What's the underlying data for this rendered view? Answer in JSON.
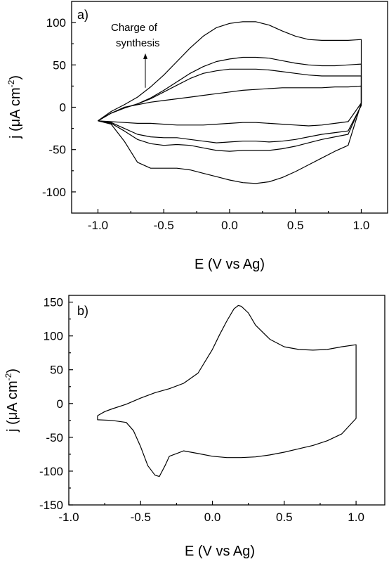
{
  "chart_data": [
    {
      "type": "line",
      "panel_label": "a)",
      "xlabel": "E (V vs Ag)",
      "ylabel_main": "j (",
      "ylabel_unit": "μA cm",
      "ylabel_exp": "-2",
      "ylabel_close": ")",
      "xlim": [
        -1.2,
        1.2
      ],
      "ylim": [
        -125,
        125
      ],
      "xticks": [
        -1.0,
        -0.5,
        0.0,
        0.5,
        1.0
      ],
      "xticklabels": [
        "-1.0",
        "-0.5",
        "0.0",
        "0.5",
        "1.0"
      ],
      "yticks": [
        -100,
        -50,
        0,
        50,
        100
      ],
      "yticklabels": [
        "-100",
        "-50",
        "0",
        "50",
        "100"
      ],
      "annotation": {
        "lines": [
          "Charge of",
          "synthesis"
        ],
        "arrow_x": -0.64,
        "arrow_y_from": 23,
        "arrow_y_to": 62
      },
      "series": [
        {
          "x": [
            -1.0,
            -0.9,
            -0.8,
            -0.7,
            -0.6,
            -0.5,
            -0.4,
            -0.3,
            -0.2,
            -0.1,
            0.0,
            0.1,
            0.2,
            0.3,
            0.4,
            0.5,
            0.6,
            0.7,
            0.8,
            0.9,
            1.0,
            1.0,
            0.9,
            0.8,
            0.7,
            0.6,
            0.5,
            0.4,
            0.3,
            0.2,
            0.1,
            0.0,
            -0.1,
            -0.2,
            -0.3,
            -0.4,
            -0.5,
            -0.6,
            -0.7,
            -0.8,
            -0.9,
            -1.0
          ],
          "y": [
            -16,
            -7,
            0,
            3,
            6,
            8,
            10,
            12,
            14,
            16,
            18,
            20,
            21,
            22,
            23,
            23,
            23,
            23,
            24,
            24,
            25,
            5,
            -17,
            -19,
            -21,
            -22,
            -21,
            -20,
            -19,
            -18,
            -18,
            -19,
            -20,
            -21,
            -21,
            -21,
            -20,
            -19,
            -19,
            -18,
            -17,
            -16
          ]
        },
        {
          "x": [
            -1.0,
            -0.9,
            -0.8,
            -0.7,
            -0.6,
            -0.5,
            -0.4,
            -0.3,
            -0.2,
            -0.1,
            0.0,
            0.1,
            0.2,
            0.3,
            0.4,
            0.5,
            0.6,
            0.7,
            0.8,
            0.9,
            1.0,
            1.0,
            0.9,
            0.8,
            0.7,
            0.6,
            0.5,
            0.4,
            0.3,
            0.2,
            0.1,
            0.0,
            -0.1,
            -0.2,
            -0.3,
            -0.4,
            -0.5,
            -0.6,
            -0.7,
            -0.8,
            -0.9,
            -1.0
          ],
          "y": [
            -16,
            -7,
            -1,
            4,
            10,
            18,
            26,
            34,
            40,
            43,
            45,
            45,
            45,
            44,
            42,
            40,
            38,
            37,
            37,
            37,
            37,
            2,
            -28,
            -30,
            -32,
            -35,
            -38,
            -40,
            -41,
            -40,
            -40,
            -41,
            -42,
            -40,
            -38,
            -36,
            -36,
            -35,
            -32,
            -25,
            -18,
            -16
          ]
        },
        {
          "x": [
            -1.0,
            -0.9,
            -0.8,
            -0.7,
            -0.6,
            -0.5,
            -0.4,
            -0.3,
            -0.2,
            -0.1,
            0.0,
            0.1,
            0.2,
            0.3,
            0.4,
            0.5,
            0.6,
            0.7,
            0.8,
            0.9,
            1.0,
            1.0,
            0.9,
            0.8,
            0.7,
            0.6,
            0.5,
            0.4,
            0.3,
            0.2,
            0.1,
            0.0,
            -0.1,
            -0.2,
            -0.3,
            -0.4,
            -0.5,
            -0.6,
            -0.7,
            -0.8,
            -0.9,
            -1.0
          ],
          "y": [
            -16,
            -7,
            -1,
            4,
            11,
            20,
            30,
            40,
            48,
            54,
            57,
            59,
            59,
            58,
            55,
            52,
            50,
            49,
            49,
            50,
            51,
            3,
            -32,
            -35,
            -38,
            -42,
            -46,
            -49,
            -51,
            -51,
            -51,
            -52,
            -51,
            -48,
            -45,
            -44,
            -45,
            -43,
            -38,
            -28,
            -19,
            -16
          ]
        },
        {
          "x": [
            -1.0,
            -0.9,
            -0.8,
            -0.7,
            -0.6,
            -0.5,
            -0.4,
            -0.3,
            -0.2,
            -0.1,
            0.0,
            0.1,
            0.2,
            0.3,
            0.4,
            0.5,
            0.6,
            0.7,
            0.8,
            0.9,
            1.0,
            1.0,
            0.9,
            0.8,
            0.7,
            0.6,
            0.5,
            0.4,
            0.3,
            0.2,
            0.1,
            0.0,
            -0.1,
            -0.2,
            -0.3,
            -0.4,
            -0.5,
            -0.6,
            -0.7,
            -0.8,
            -0.9,
            -1.0
          ],
          "y": [
            -16,
            -5,
            3,
            12,
            24,
            38,
            54,
            70,
            84,
            94,
            99,
            101,
            101,
            97,
            90,
            84,
            80,
            79,
            79,
            79,
            80,
            5,
            -45,
            -52,
            -60,
            -68,
            -76,
            -83,
            -88,
            -90,
            -89,
            -86,
            -82,
            -78,
            -74,
            -72,
            -72,
            -72,
            -65,
            -40,
            -20,
            -16
          ]
        }
      ]
    },
    {
      "type": "line",
      "panel_label": "b)",
      "xlabel": "E (V vs Ag)",
      "ylabel_main": "j (",
      "ylabel_unit": "μA cm",
      "ylabel_exp": "-2",
      "ylabel_close": ")",
      "xlim": [
        -1.0,
        1.2
      ],
      "ylim": [
        -150,
        160
      ],
      "xticks": [
        -1.0,
        -0.5,
        0.0,
        0.5,
        1.0
      ],
      "xticklabels": [
        "-1.0",
        "-0.5",
        "0.0",
        "0.5",
        "1.0"
      ],
      "yticks": [
        -150,
        -100,
        -50,
        0,
        50,
        100,
        150
      ],
      "yticklabels": [
        "-150",
        "-100",
        "-50",
        "0",
        "50",
        "100",
        "150"
      ],
      "series": [
        {
          "x": [
            -0.8,
            -0.75,
            -0.7,
            -0.6,
            -0.5,
            -0.4,
            -0.3,
            -0.2,
            -0.1,
            0.0,
            0.05,
            0.1,
            0.15,
            0.18,
            0.2,
            0.25,
            0.3,
            0.4,
            0.5,
            0.6,
            0.7,
            0.8,
            0.9,
            1.0,
            1.0,
            0.9,
            0.8,
            0.7,
            0.6,
            0.5,
            0.4,
            0.3,
            0.2,
            0.1,
            0.0,
            -0.1,
            -0.2,
            -0.3,
            -0.33,
            -0.37,
            -0.4,
            -0.45,
            -0.5,
            -0.55,
            -0.6,
            -0.7,
            -0.8,
            -0.8
          ],
          "y": [
            -18,
            -12,
            -8,
            -1,
            8,
            16,
            22,
            30,
            45,
            80,
            102,
            122,
            140,
            145,
            144,
            134,
            116,
            95,
            84,
            80,
            79,
            80,
            84,
            87,
            -22,
            -45,
            -55,
            -62,
            -67,
            -72,
            -76,
            -79,
            -80,
            -80,
            -78,
            -74,
            -70,
            -78,
            -92,
            -108,
            -106,
            -92,
            -64,
            -40,
            -28,
            -25,
            -24,
            -18
          ]
        }
      ]
    }
  ]
}
